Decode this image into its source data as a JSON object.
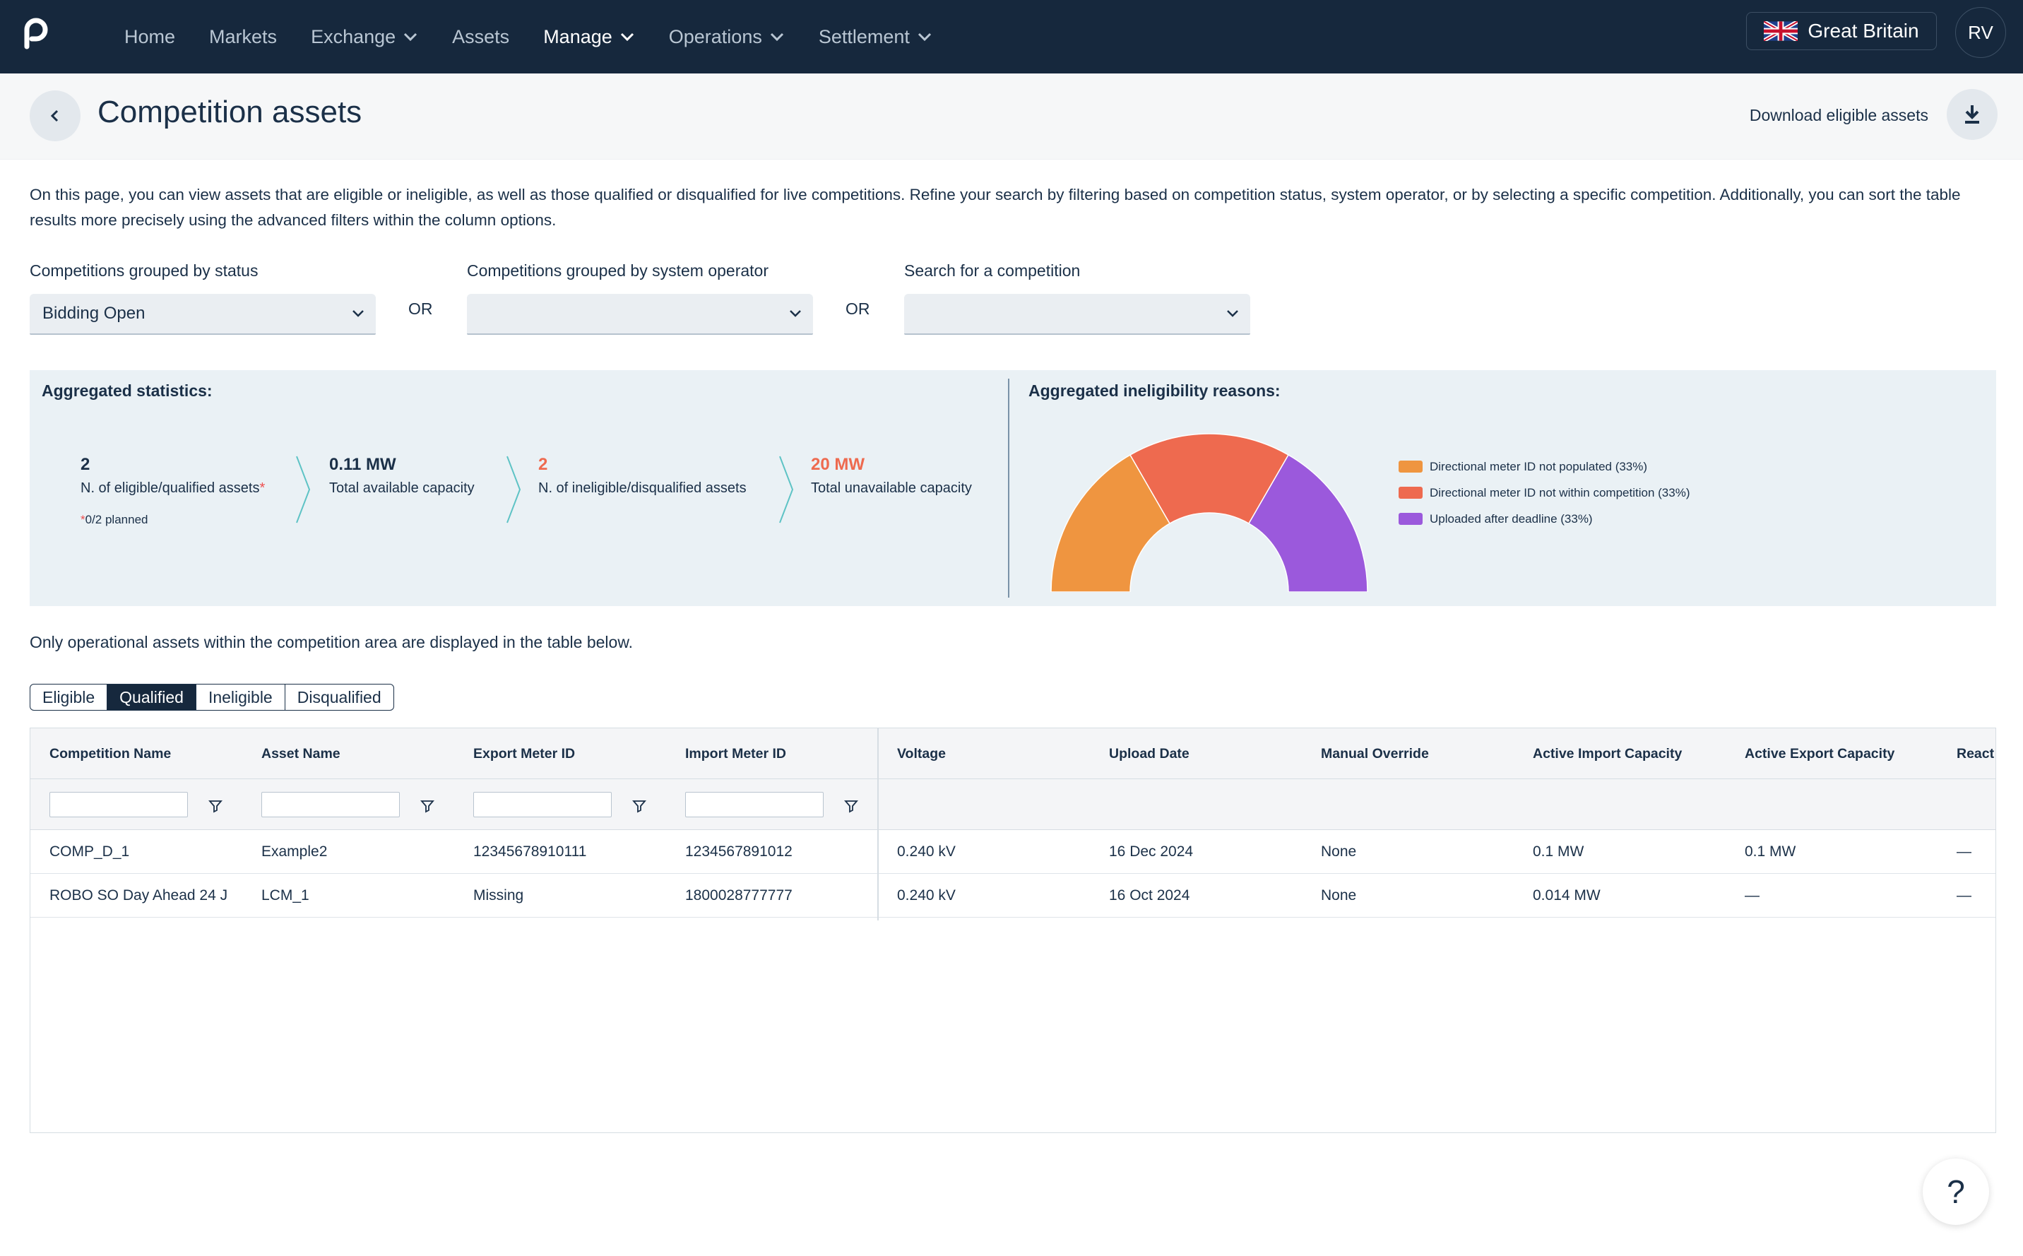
{
  "nav": {
    "items": [
      {
        "label": "Home"
      },
      {
        "label": "Markets"
      },
      {
        "label": "Exchange"
      },
      {
        "label": "Assets"
      },
      {
        "label": "Manage"
      },
      {
        "label": "Operations"
      },
      {
        "label": "Settlement"
      }
    ],
    "country": "Great Britain",
    "user_initials": "RV"
  },
  "header": {
    "title": "Competition assets",
    "download_label": "Download eligible assets"
  },
  "intro": "On this page, you can view assets that are eligible or ineligible, as well as those qualified or disqualified for live competitions. Refine your search by filtering based on competition status, system operator, or by selecting a specific competition. Additionally, you can sort the table results more precisely using the advanced filters within the column options.",
  "filters": {
    "status_label": "Competitions grouped by status",
    "status_value": "Bidding Open",
    "operator_label": "Competitions grouped by system operator",
    "operator_value": "",
    "search_label": "Search for a competition",
    "search_value": "",
    "or_text": "OR"
  },
  "stats": {
    "title": "Aggregated statistics:",
    "items": [
      {
        "value": "2",
        "label": "N. of eligible/qualified assets",
        "asterisk": "*"
      },
      {
        "value": "0.11 MW",
        "label": "Total available capacity"
      },
      {
        "value": "2",
        "label": "N. of ineligible/disqualified assets"
      },
      {
        "value": "20 MW",
        "label": "Total unavailable capacity"
      }
    ],
    "planned_asterisk": "*",
    "planned_note": "0/2 planned"
  },
  "ineligibility": {
    "title": "Aggregated ineligibility reasons:",
    "chart_data": {
      "type": "pie",
      "variant": "half-donut",
      "categories": [
        "Directional meter ID not populated",
        "Directional meter ID not within competition",
        "Uploaded after deadline"
      ],
      "values": [
        33,
        33,
        33
      ],
      "colors": [
        "#ef9540",
        "#ee6a4f",
        "#9b59dc"
      ],
      "legend": [
        "Directional meter ID not populated (33%)",
        "Directional meter ID not within competition (33%)",
        "Uploaded after deadline (33%)"
      ],
      "legend_position": "right"
    }
  },
  "note": "Only operational assets within the competition area are displayed in the table below.",
  "tabs": [
    {
      "label": "Eligible"
    },
    {
      "label": "Qualified"
    },
    {
      "label": "Ineligible"
    },
    {
      "label": "Disqualified"
    }
  ],
  "table": {
    "columns": [
      "Competition Name",
      "Asset Name",
      "Export Meter ID",
      "Import Meter ID",
      "Voltage",
      "Upload Date",
      "Manual Override",
      "Active Import Capacity",
      "Active Export Capacity",
      "React"
    ],
    "rows": [
      [
        "COMP_D_1",
        "Example2",
        "12345678910111",
        "1234567891012",
        "0.240 kV",
        "16 Dec 2024",
        "None",
        "0.1 MW",
        "0.1 MW",
        "—"
      ],
      [
        "ROBO SO Day Ahead 24 J",
        "LCM_1",
        "Missing",
        "1800028777777",
        "0.240 kV",
        "16 Oct 2024",
        "None",
        "0.014 MW",
        "—",
        "—"
      ]
    ]
  },
  "help_label": "?"
}
